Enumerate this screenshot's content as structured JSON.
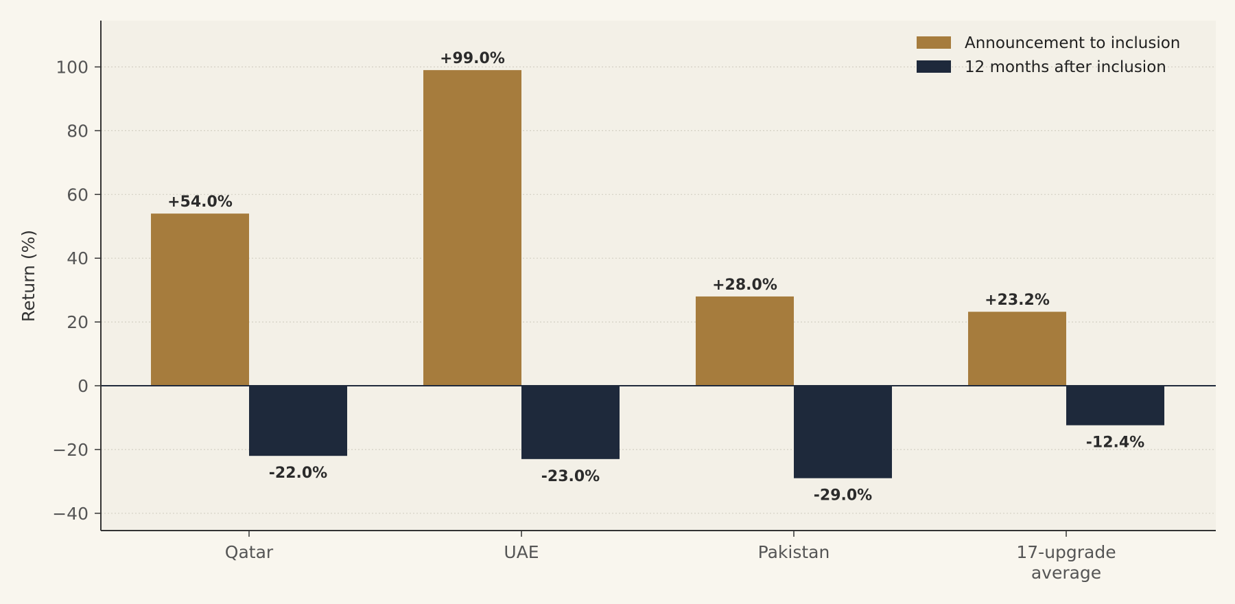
{
  "chart_data": {
    "type": "bar",
    "categories": [
      "Qatar",
      "UAE",
      "Pakistan",
      "17-upgrade\naverage"
    ],
    "series": [
      {
        "name": "Announcement to inclusion",
        "color": "#a67c3d",
        "values": [
          54.0,
          99.0,
          28.0,
          23.2
        ],
        "labels": [
          "+54.0%",
          "+99.0%",
          "+28.0%",
          "+23.2%"
        ]
      },
      {
        "name": "12 months after inclusion",
        "color": "#1e293b",
        "values": [
          -22.0,
          -23.0,
          -29.0,
          -12.4
        ],
        "labels": [
          "-22.0%",
          "-23.0%",
          "-29.0%",
          "-12.4%"
        ]
      }
    ],
    "ylabel": "Return (%)",
    "ylim": [
      -45,
      115
    ],
    "yticks": [
      -40,
      -20,
      0,
      20,
      40,
      60,
      80,
      100
    ],
    "ytick_labels": [
      "−40",
      "−20",
      "0",
      "20",
      "40",
      "60",
      "80",
      "100"
    ],
    "grid": true,
    "legend_position": "top-right",
    "plot_background": "#f3f0e7",
    "page_background": "#f9f6ee"
  }
}
